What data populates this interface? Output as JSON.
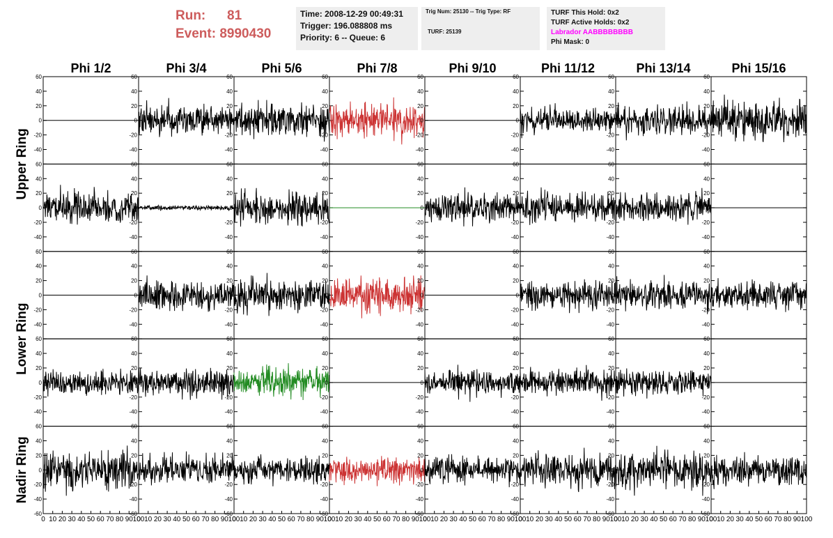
{
  "header": {
    "run_label": "Run:",
    "run_value": "81",
    "event_label": "Event:",
    "event_value": "8990430"
  },
  "info_box_1": {
    "time": "Time: 2008-12-29 00:49:31",
    "trigger": "Trigger: 196.088808 ms",
    "priority": "Priority: 6 -- Queue: 6"
  },
  "info_box_2": {
    "trig": "Trig Num: 25130 -- Trig Type: RF",
    "turf": "TURF: 25139"
  },
  "info_box_3": {
    "this_hold": "TURF This Hold: 0x2",
    "active_holds": "TURF Active Holds: 0x2",
    "labrador": "Labrador AABBBBBBBB",
    "phi_mask": "Phi Mask: 0"
  },
  "colors": {
    "header_text": "#cd5c5c",
    "labrador": "#ff00ff",
    "trace_default": "#000000",
    "trace_red": "#cc3333",
    "trace_green": "#228b22"
  },
  "chart_data": {
    "type": "line",
    "columns": [
      "Phi 1/2",
      "Phi 3/4",
      "Phi 5/6",
      "Phi 7/8",
      "Phi 9/10",
      "Phi 11/12",
      "Phi 13/14",
      "Phi 15/16"
    ],
    "ring_labels": [
      "Upper Ring",
      "Lower Ring",
      "Nadir Ring"
    ],
    "rows": 5,
    "xlim": [
      0,
      100
    ],
    "ylim": [
      -60,
      60
    ],
    "y_ticks": [
      -40,
      -20,
      0,
      20,
      40,
      60
    ],
    "y_ticks_bottom": [
      -60,
      -40,
      -20,
      0,
      20,
      40,
      60
    ],
    "x_ticks": [
      0,
      10,
      20,
      30,
      40,
      50,
      60,
      70,
      80,
      90,
      100
    ],
    "panels": [
      [
        {
          "color": "black",
          "amp": 0
        },
        {
          "color": "black",
          "amp": 13
        },
        {
          "color": "black",
          "amp": 14
        },
        {
          "color": "red",
          "amp": 15
        },
        {
          "color": "black",
          "amp": 0
        },
        {
          "color": "black",
          "amp": 11
        },
        {
          "color": "black",
          "amp": 13
        },
        {
          "color": "black",
          "amp": 16
        }
      ],
      [
        {
          "color": "black",
          "amp": 14
        },
        {
          "color": "black",
          "amp": 2
        },
        {
          "color": "black",
          "amp": 14
        },
        {
          "color": "green",
          "amp": 0
        },
        {
          "color": "black",
          "amp": 13
        },
        {
          "color": "black",
          "amp": 13
        },
        {
          "color": "black",
          "amp": 13
        },
        {
          "color": "black",
          "amp": 0
        }
      ],
      [
        {
          "color": "black",
          "amp": 0
        },
        {
          "color": "black",
          "amp": 13
        },
        {
          "color": "black",
          "amp": 14
        },
        {
          "color": "red",
          "amp": 15
        },
        {
          "color": "black",
          "amp": 0
        },
        {
          "color": "black",
          "amp": 12
        },
        {
          "color": "black",
          "amp": 13
        },
        {
          "color": "black",
          "amp": 12
        }
      ],
      [
        {
          "color": "black",
          "amp": 11
        },
        {
          "color": "black",
          "amp": 12
        },
        {
          "color": "green",
          "amp": 13
        },
        {
          "color": "black",
          "amp": 0
        },
        {
          "color": "black",
          "amp": 11
        },
        {
          "color": "black",
          "amp": 12
        },
        {
          "color": "black",
          "amp": 11
        },
        {
          "color": "black",
          "amp": 0
        }
      ],
      [
        {
          "color": "black",
          "amp": 17
        },
        {
          "color": "black",
          "amp": 12
        },
        {
          "color": "black",
          "amp": 11
        },
        {
          "color": "red",
          "amp": 11
        },
        {
          "color": "black",
          "amp": 12
        },
        {
          "color": "black",
          "amp": 15
        },
        {
          "color": "black",
          "amp": 16
        },
        {
          "color": "black",
          "amp": 14
        }
      ]
    ]
  }
}
